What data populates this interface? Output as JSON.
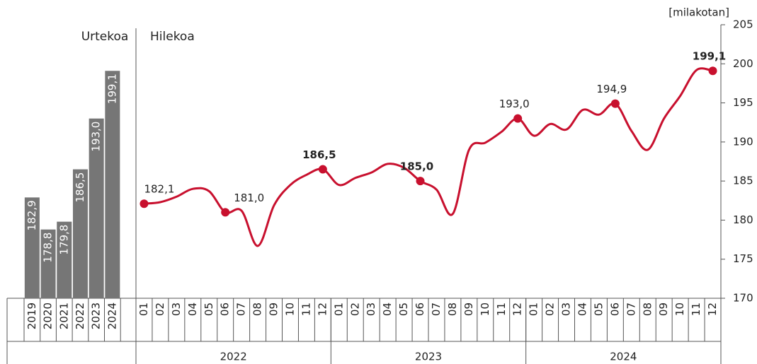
{
  "chart_data": [
    {
      "type": "bar",
      "title": "Urtekoa",
      "categories": [
        "2019",
        "2020",
        "2021",
        "2022",
        "2023",
        "2024"
      ],
      "values": [
        182.9,
        178.8,
        179.8,
        186.5,
        193.0,
        199.1
      ],
      "value_labels": [
        "182,9",
        "178,8",
        "179,8",
        "186,5",
        "193,0",
        "199,1"
      ],
      "color": "#767676",
      "ylim": [
        170,
        205
      ]
    },
    {
      "type": "line",
      "title": "Hilekoa",
      "y_label": "[milakotan]",
      "color": "#c8102e",
      "categories": [
        "01",
        "02",
        "03",
        "04",
        "05",
        "06",
        "07",
        "08",
        "09",
        "10",
        "11",
        "12",
        "01",
        "02",
        "03",
        "04",
        "05",
        "06",
        "07",
        "08",
        "09",
        "10",
        "11",
        "12",
        "01",
        "02",
        "03",
        "04",
        "05",
        "06",
        "07",
        "08",
        "09",
        "10",
        "11",
        "12"
      ],
      "year_groups": [
        "2022",
        "2023",
        "2024"
      ],
      "values": [
        182.1,
        182.3,
        183.0,
        184.0,
        183.7,
        181.0,
        181.2,
        176.7,
        181.9,
        184.5,
        185.8,
        186.5,
        184.5,
        185.4,
        186.1,
        187.2,
        186.7,
        185.0,
        183.9,
        180.8,
        189.0,
        189.9,
        191.3,
        193.0,
        190.8,
        192.3,
        191.6,
        194.1,
        193.5,
        194.9,
        191.4,
        189.0,
        193.0,
        195.9,
        199.2,
        199.1
      ],
      "value_labels": [
        "182,1",
        null,
        null,
        null,
        null,
        "181,0",
        null,
        null,
        null,
        null,
        null,
        "186,5",
        null,
        null,
        null,
        null,
        null,
        "185,0",
        null,
        null,
        null,
        null,
        null,
        "193,0",
        null,
        null,
        null,
        null,
        null,
        "194,9",
        null,
        null,
        null,
        null,
        null,
        "199,1"
      ],
      "bold_labels": [
        11,
        17,
        35
      ],
      "ylim": [
        170,
        205
      ],
      "yticks": [
        170,
        175,
        180,
        185,
        190,
        195,
        200,
        205
      ]
    }
  ]
}
